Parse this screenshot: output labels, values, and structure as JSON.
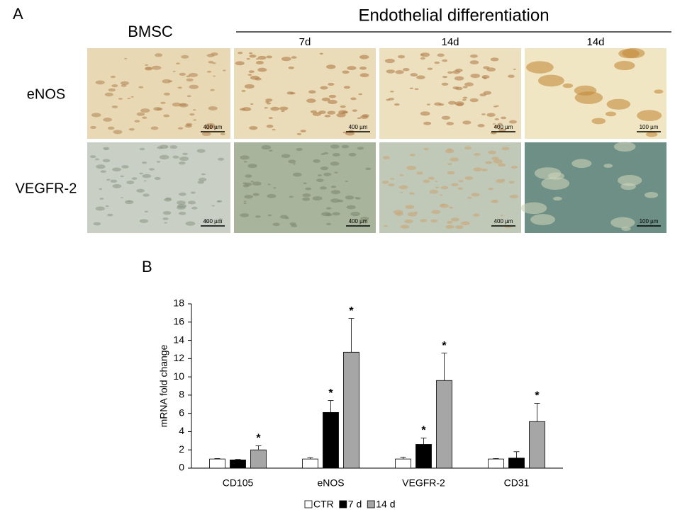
{
  "panel_a": {
    "label": "A",
    "group_title": "Endothelial differentiation",
    "columns": [
      "BMSC",
      "7d",
      "14d",
      "14d"
    ],
    "rows": [
      "eNOS",
      "VEGFR-2"
    ],
    "scale_bars": [
      [
        "400 µm",
        "400 µm",
        "400 µm",
        "100 µm"
      ],
      [
        "400 µm",
        "400 µm",
        "400 µm",
        "100 µm"
      ]
    ]
  },
  "chart_data": {
    "type": "bar",
    "panel_label": "B",
    "ylabel": "mRNA fold change",
    "categories": [
      "CD105",
      "eNOS",
      "VEGFR-2",
      "CD31"
    ],
    "series": [
      {
        "name": "CTR",
        "color": "#ffffff",
        "values": [
          1.0,
          1.0,
          1.0,
          1.0
        ],
        "errors": [
          0.05,
          0.15,
          0.2,
          0.05
        ],
        "markers": [
          null,
          null,
          null,
          null
        ]
      },
      {
        "name": "7 d",
        "color": "#000000",
        "values": [
          0.9,
          6.1,
          2.6,
          1.1
        ],
        "errors": [
          0.05,
          1.3,
          0.7,
          0.7
        ],
        "markers": [
          null,
          "*",
          "*",
          null
        ]
      },
      {
        "name": "14 d",
        "color": "#a6a6a6",
        "values": [
          2.0,
          12.7,
          9.6,
          5.1
        ],
        "errors": [
          0.45,
          3.7,
          3.0,
          2.0
        ],
        "markers": [
          "*",
          "*",
          "*",
          "*"
        ]
      }
    ],
    "ylim": [
      0,
      18
    ],
    "yticks": [
      0,
      2,
      4,
      6,
      8,
      10,
      12,
      14,
      16,
      18
    ]
  }
}
